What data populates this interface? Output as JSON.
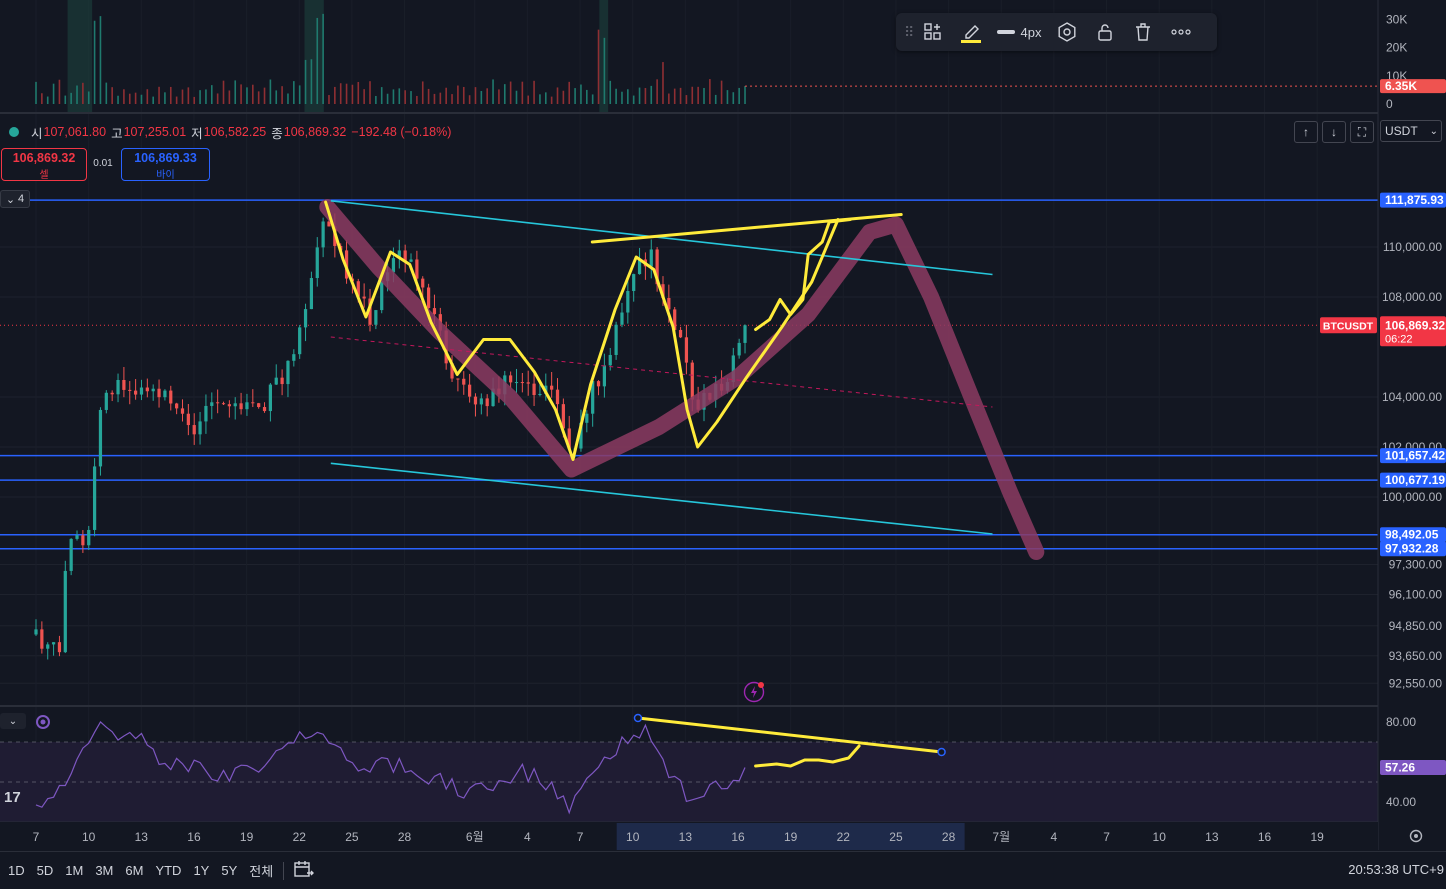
{
  "chart_data": {
    "type": "candlestick",
    "symbol": "BTCUSDT",
    "quote_currency": "USDT",
    "ohlc_legend": {
      "open_label": "시",
      "open": "107,061.80",
      "high_label": "고",
      "high": "107,255.01",
      "low_label": "저",
      "low": "106,582.25",
      "close_label": "종",
      "close": "106,869.32",
      "change": "−192.48 (−0.18%)"
    },
    "trade": {
      "sell_price": "106,869.32",
      "sell_label": "셀",
      "buy_price": "106,869.33",
      "buy_label": "바이",
      "spread": "0.01"
    },
    "price_axis": {
      "range": [
        91800,
        113800
      ],
      "ticks": [
        "110,000.00",
        "108,000.00",
        "104,000.00",
        "102,000.00",
        "100,000.00",
        "97,300.00",
        "96,100.00",
        "94,850.00",
        "93,650.00",
        "92,550.00"
      ],
      "tick_values": [
        110000,
        108000,
        104000,
        102000,
        100000,
        97300,
        96100,
        94850,
        93650,
        92550
      ]
    },
    "last_price": {
      "label": "BTCUSDT",
      "value": "106,869.32",
      "countdown": "06:22",
      "number": 106869.32
    },
    "horizontal_levels": [
      {
        "label": "111,875.93",
        "value": 111875.93
      },
      {
        "label": "101,657.42",
        "value": 101657.42
      },
      {
        "label": "100,677.19",
        "value": 100677.19
      },
      {
        "label": "98,492.05",
        "value": 98492.05
      },
      {
        "label": "97,932.28",
        "value": 97932.28
      }
    ],
    "volume": {
      "ticks": [
        "30K",
        "20K",
        "10K",
        "0"
      ],
      "tick_values": [
        30000,
        20000,
        10000,
        0
      ],
      "max": 34000,
      "current_label": "6.35K",
      "current_value": 6350
    },
    "rsi": {
      "ticks": [
        "80.00",
        "40.00"
      ],
      "tick_values": [
        80,
        40
      ],
      "range": [
        31,
        86
      ],
      "current_label": "57.26",
      "current_value": 57.26
    },
    "time_axis": {
      "labels": [
        "7",
        "10",
        "13",
        "16",
        "19",
        "22",
        "25",
        "28",
        "6월",
        "4",
        "7",
        "10",
        "13",
        "16",
        "19",
        "22",
        "25",
        "28",
        "7월",
        "4",
        "7",
        "10",
        "13",
        "16",
        "19"
      ],
      "label_days": [
        0,
        3,
        6,
        9,
        12,
        15,
        18,
        21,
        25,
        28,
        31,
        34,
        37,
        40,
        43,
        46,
        49,
        52,
        55,
        58,
        61,
        64,
        67,
        70,
        73
      ],
      "first_day": 7,
      "last_candle_day": 40.4,
      "day_px": 17.55
    },
    "candles_shown": 122,
    "path_keypoints": [
      {
        "day": 0,
        "price": 94500
      },
      {
        "day": 1.3,
        "price": 93900
      },
      {
        "day": 1.8,
        "price": 97700
      },
      {
        "day": 3.0,
        "price": 98800
      },
      {
        "day": 3.5,
        "price": 102900
      },
      {
        "day": 4.3,
        "price": 104500
      },
      {
        "day": 5.5,
        "price": 103800
      },
      {
        "day": 6.5,
        "price": 104700
      },
      {
        "day": 8.0,
        "price": 103400
      },
      {
        "day": 9.2,
        "price": 102600
      },
      {
        "day": 10.5,
        "price": 104200
      },
      {
        "day": 11.5,
        "price": 103500
      },
      {
        "day": 13.0,
        "price": 103800
      },
      {
        "day": 14.3,
        "price": 104900
      },
      {
        "day": 15.5,
        "price": 108000
      },
      {
        "day": 16.6,
        "price": 111500
      },
      {
        "day": 17.5,
        "price": 109300
      },
      {
        "day": 18.2,
        "price": 108300
      },
      {
        "day": 19.2,
        "price": 107000
      },
      {
        "day": 20.3,
        "price": 109900
      },
      {
        "day": 21.0,
        "price": 109600
      },
      {
        "day": 22.0,
        "price": 108200
      },
      {
        "day": 23.0,
        "price": 106400
      },
      {
        "day": 24.0,
        "price": 104400
      },
      {
        "day": 25.5,
        "price": 103800
      },
      {
        "day": 27.0,
        "price": 104700
      },
      {
        "day": 28.5,
        "price": 104200
      },
      {
        "day": 29.5,
        "price": 103900
      },
      {
        "day": 30.5,
        "price": 101300
      },
      {
        "day": 31.5,
        "price": 104000
      },
      {
        "day": 32.8,
        "price": 105800
      },
      {
        "day": 34.0,
        "price": 109100
      },
      {
        "day": 35.0,
        "price": 109800
      },
      {
        "day": 36.0,
        "price": 107500
      },
      {
        "day": 36.8,
        "price": 106300
      },
      {
        "day": 37.5,
        "price": 103600
      },
      {
        "day": 38.5,
        "price": 104200
      },
      {
        "day": 39.5,
        "price": 104700
      },
      {
        "day": 40.4,
        "price": 106869
      }
    ],
    "rsi_keypoints": [
      {
        "day": 0,
        "value": 39
      },
      {
        "day": 1.5,
        "value": 45
      },
      {
        "day": 2.4,
        "value": 62
      },
      {
        "day": 3.6,
        "value": 77
      },
      {
        "day": 5.0,
        "value": 72
      },
      {
        "day": 6.2,
        "value": 71
      },
      {
        "day": 7.2,
        "value": 57
      },
      {
        "day": 9.0,
        "value": 58
      },
      {
        "day": 10.3,
        "value": 52
      },
      {
        "day": 12.0,
        "value": 55
      },
      {
        "day": 13.8,
        "value": 63
      },
      {
        "day": 15.0,
        "value": 75
      },
      {
        "day": 16.3,
        "value": 74
      },
      {
        "day": 17.5,
        "value": 62
      },
      {
        "day": 19.0,
        "value": 57
      },
      {
        "day": 20.5,
        "value": 59
      },
      {
        "day": 21.8,
        "value": 53
      },
      {
        "day": 23.3,
        "value": 50
      },
      {
        "day": 24.5,
        "value": 45
      },
      {
        "day": 26.0,
        "value": 50
      },
      {
        "day": 27.5,
        "value": 55
      },
      {
        "day": 28.7,
        "value": 52
      },
      {
        "day": 30.3,
        "value": 38
      },
      {
        "day": 31.5,
        "value": 54
      },
      {
        "day": 33.0,
        "value": 65
      },
      {
        "day": 34.3,
        "value": 77
      },
      {
        "day": 35.3,
        "value": 70
      },
      {
        "day": 36.3,
        "value": 52
      },
      {
        "day": 37.3,
        "value": 42
      },
      {
        "day": 38.5,
        "value": 47
      },
      {
        "day": 39.8,
        "value": 50
      },
      {
        "day": 40.4,
        "value": 57
      }
    ],
    "volume_spike_days": [
      3.5,
      3.6,
      15.5,
      16.2,
      16.3,
      32.2,
      35.8
    ],
    "highlighted_days": [
      [
        1.8,
        3.2
      ],
      [
        15.3,
        16.4
      ],
      [
        32.1,
        32.6
      ]
    ],
    "drawings": {
      "cyan_channel_upper": [
        {
          "day": 16.8,
          "price": 111850
        },
        {
          "day": 54.5,
          "price": 108900
        }
      ],
      "cyan_channel_lower": [
        {
          "day": 16.8,
          "price": 101350
        },
        {
          "day": 54.5,
          "price": 98520
        }
      ],
      "pink_dashed_midline": [
        {
          "day": 16.8,
          "price": 106400
        },
        {
          "day": 54.5,
          "price": 103600
        }
      ],
      "yellow_top_line": [
        {
          "day": 31.7,
          "price": 110200
        },
        {
          "day": 49.3,
          "price": 111300
        }
      ],
      "yellow_wave": [
        {
          "day": 16.5,
          "price": 111800
        },
        {
          "day": 17.5,
          "price": 109500
        },
        {
          "day": 18.8,
          "price": 107200
        },
        {
          "day": 20.2,
          "price": 109800
        },
        {
          "day": 21.3,
          "price": 109300
        },
        {
          "day": 22.5,
          "price": 107000
        },
        {
          "day": 24.0,
          "price": 104900
        },
        {
          "day": 25.5,
          "price": 106300
        },
        {
          "day": 27.0,
          "price": 106300
        },
        {
          "day": 28.4,
          "price": 105000
        },
        {
          "day": 29.6,
          "price": 103500
        },
        {
          "day": 30.6,
          "price": 101500
        },
        {
          "day": 31.6,
          "price": 104500
        },
        {
          "day": 33.0,
          "price": 107500
        },
        {
          "day": 34.2,
          "price": 109600
        },
        {
          "day": 35.2,
          "price": 109100
        },
        {
          "day": 36.3,
          "price": 106800
        },
        {
          "day": 37.1,
          "price": 103500
        },
        {
          "day": 37.7,
          "price": 102000
        },
        {
          "day": 38.8,
          "price": 103000
        },
        {
          "day": 40.5,
          "price": 104800
        },
        {
          "day": 42.5,
          "price": 106800
        },
        {
          "day": 44.2,
          "price": 108600
        },
        {
          "day": 45.7,
          "price": 111100
        }
      ],
      "yellow_scribble": [
        {
          "day": 41.0,
          "price": 106700
        },
        {
          "day": 41.8,
          "price": 107100
        },
        {
          "day": 42.4,
          "price": 107900
        },
        {
          "day": 43.0,
          "price": 107300
        },
        {
          "day": 43.7,
          "price": 107900
        },
        {
          "day": 44.0,
          "price": 109700
        },
        {
          "day": 44.8,
          "price": 110200
        },
        {
          "day": 45.2,
          "price": 111000
        },
        {
          "day": 46.4,
          "price": 111100
        }
      ],
      "pink_projection": [
        {
          "day": 16.6,
          "price": 111600
        },
        {
          "day": 19.5,
          "price": 109200
        },
        {
          "day": 23.0,
          "price": 106600
        },
        {
          "day": 27.0,
          "price": 104000
        },
        {
          "day": 30.5,
          "price": 101100
        },
        {
          "day": 35.5,
          "price": 102800
        },
        {
          "day": 40.0,
          "price": 104800
        },
        {
          "day": 44.0,
          "price": 107300
        },
        {
          "day": 47.5,
          "price": 110600
        },
        {
          "day": 49.0,
          "price": 110900
        },
        {
          "day": 51.0,
          "price": 108000
        },
        {
          "day": 53.3,
          "price": 104000
        },
        {
          "day": 55.5,
          "price": 100200
        },
        {
          "day": 57.0,
          "price": 97800
        }
      ],
      "rsi_yellow_line": [
        {
          "day": 34.3,
          "value": 82
        },
        {
          "day": 51.6,
          "value": 65
        }
      ],
      "rsi_yellow_scribble": [
        {
          "day": 41.0,
          "value": 58
        },
        {
          "day": 42.2,
          "value": 59
        },
        {
          "day": 43.0,
          "value": 58
        },
        {
          "day": 43.8,
          "value": 61
        },
        {
          "day": 44.6,
          "value": 61
        },
        {
          "day": 45.4,
          "value": 60
        },
        {
          "day": 46.3,
          "value": 62
        },
        {
          "day": 46.9,
          "value": 68
        }
      ]
    }
  },
  "toolbar": {
    "stroke_width": "4px"
  },
  "bottom_bar": {
    "ranges": [
      "1D",
      "5D",
      "1M",
      "3M",
      "6M",
      "YTD",
      "1Y",
      "5Y",
      "전체"
    ],
    "clock": "20:53:38 UTC+9"
  },
  "collapse_badge": "4",
  "brand": "17",
  "colors": {
    "background": "#131722",
    "up": "#26a69a",
    "down": "#ef5350",
    "level_line": "#2962ff",
    "channel": "#26c6da",
    "annotation_yellow": "#ffeb3b",
    "projection": "#8c3b62",
    "rsi": "#7e57c2",
    "rsi_band": "#1f1c33",
    "last_price": "#f23645"
  }
}
